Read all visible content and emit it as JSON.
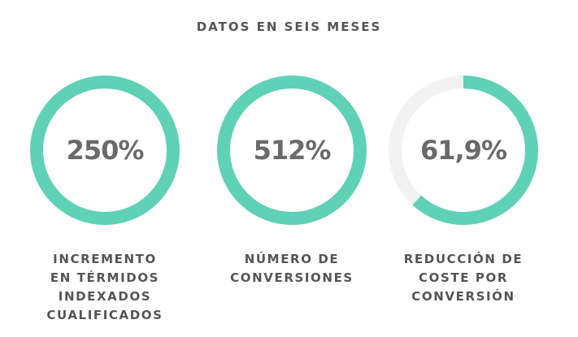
{
  "header": {
    "title": "DATOS EN SEIS MESES"
  },
  "colors": {
    "ring": "#5fd1b6",
    "track": "#f2f2f2",
    "text": "#555555"
  },
  "chart_data": {
    "type": "donut",
    "title": "DATOS EN SEIS MESES",
    "items": [
      {
        "value_label": "250%",
        "fill_fraction": 1.0,
        "label_lines": [
          "INCREMENTO",
          "EN TÉRMIDOS",
          "INDEXADOS",
          "CUALIFICADOS"
        ]
      },
      {
        "value_label": "512%",
        "fill_fraction": 1.0,
        "label_lines": [
          "NÚMERO DE",
          "CONVERSIONES"
        ]
      },
      {
        "value_label": "61,9%",
        "fill_fraction": 0.619,
        "label_lines": [
          "REDUCCIÓN DE",
          "COSTE POR",
          "CONVERSIÓN"
        ]
      }
    ]
  }
}
